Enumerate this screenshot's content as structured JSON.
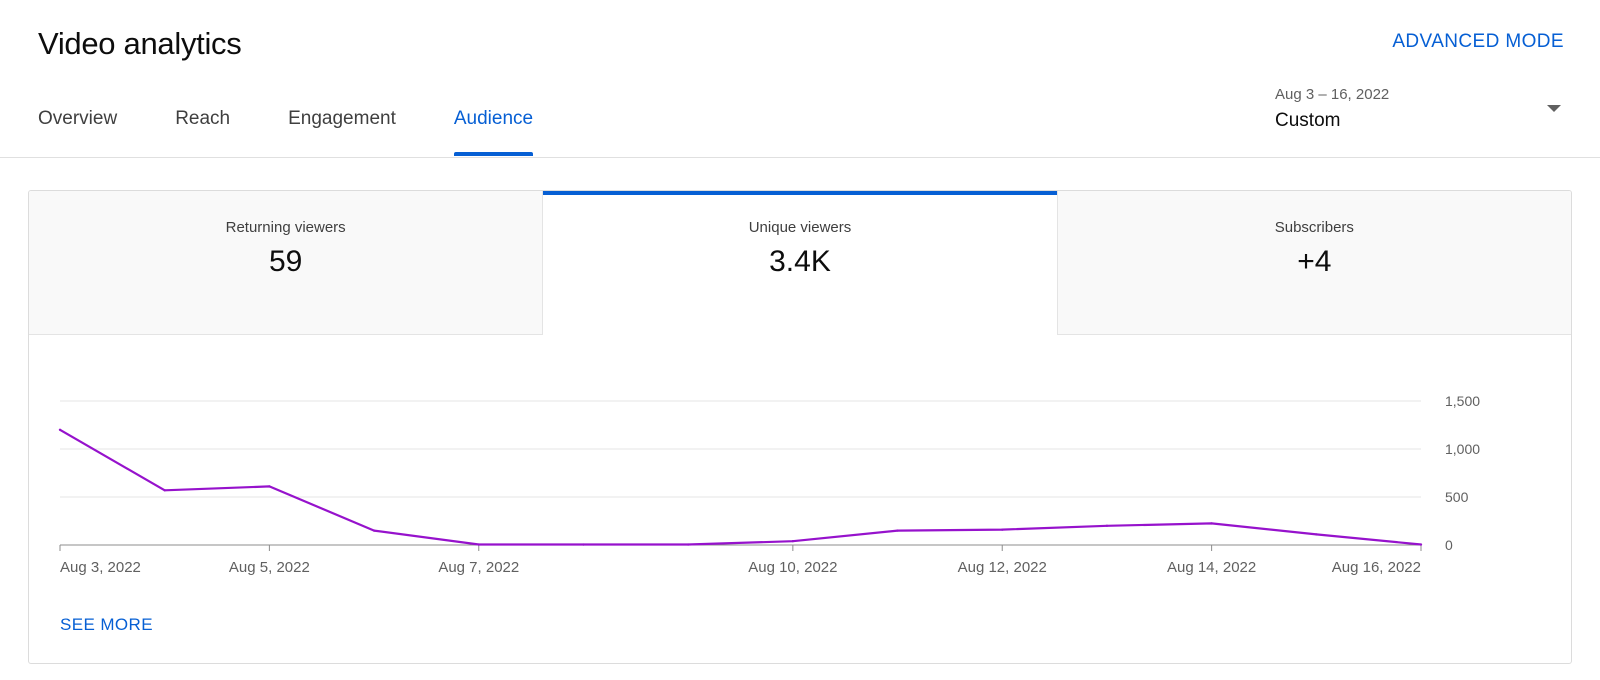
{
  "header": {
    "title": "Video analytics",
    "advanced_mode_label": "ADVANCED MODE"
  },
  "tabs": [
    {
      "label": "Overview",
      "active": false
    },
    {
      "label": "Reach",
      "active": false
    },
    {
      "label": "Engagement",
      "active": false
    },
    {
      "label": "Audience",
      "active": true
    }
  ],
  "date_picker": {
    "range": "Aug 3 – 16, 2022",
    "label": "Custom"
  },
  "metrics": [
    {
      "label": "Returning viewers",
      "value": "59",
      "active": false
    },
    {
      "label": "Unique viewers",
      "value": "3.4K",
      "active": true
    },
    {
      "label": "Subscribers",
      "value": "+4",
      "active": false
    }
  ],
  "chart_data": {
    "type": "line",
    "x": [
      "Aug 3, 2022",
      "Aug 4, 2022",
      "Aug 5, 2022",
      "Aug 6, 2022",
      "Aug 7, 2022",
      "Aug 8, 2022",
      "Aug 9, 2022",
      "Aug 10, 2022",
      "Aug 11, 2022",
      "Aug 12, 2022",
      "Aug 13, 2022",
      "Aug 14, 2022",
      "Aug 15, 2022",
      "Aug 16, 2022"
    ],
    "series": [
      {
        "values": [
          1200,
          570,
          610,
          150,
          5,
          5,
          5,
          40,
          150,
          160,
          200,
          225,
          110,
          5
        ],
        "color": "#9612cc"
      }
    ],
    "x_tick_labels": [
      "Aug 3, 2022",
      "Aug 5, 2022",
      "Aug 7, 2022",
      "Aug 10, 2022",
      "Aug 12, 2022",
      "Aug 14, 2022",
      "Aug 16, 2022"
    ],
    "y_tick_labels": [
      "0",
      "500",
      "1,000",
      "1,500"
    ],
    "y_ticks": [
      0,
      500,
      1000,
      1500
    ],
    "ylim": [
      0,
      1500
    ],
    "grid": true,
    "y_axis_side": "right"
  },
  "see_more_label": "SEE MORE",
  "colors": {
    "accent": "#065fd4",
    "series": "#9612cc"
  }
}
